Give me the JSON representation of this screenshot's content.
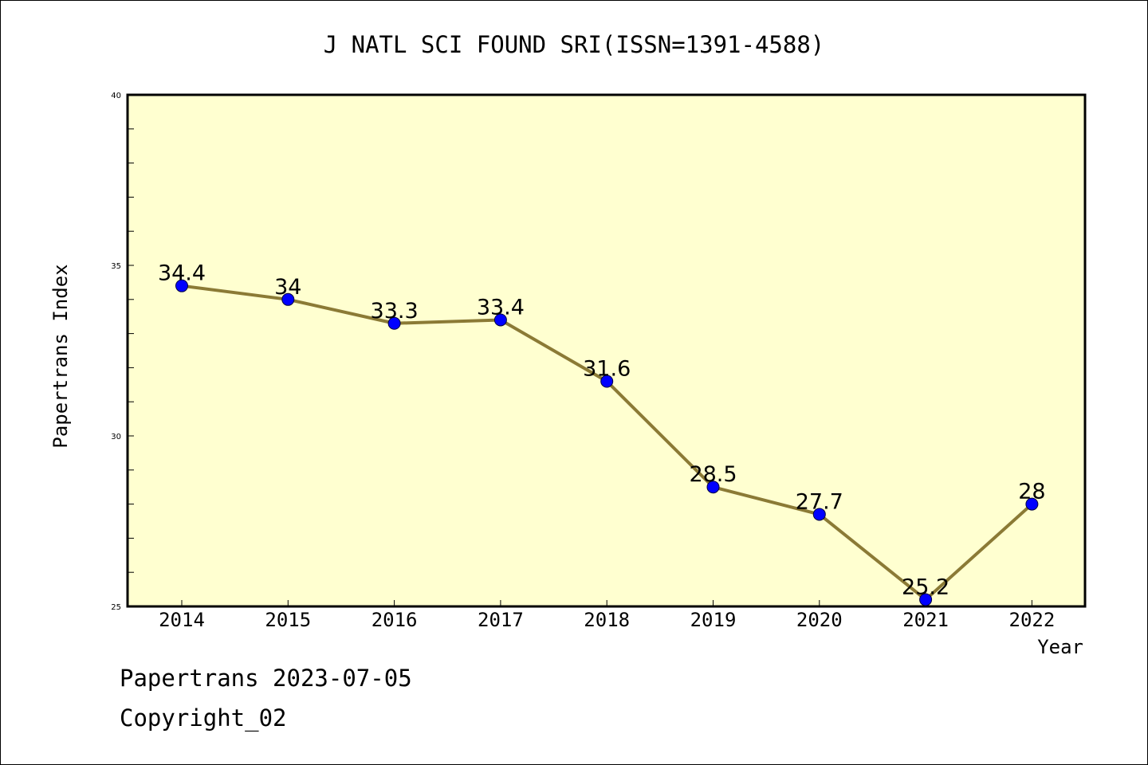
{
  "chart_data": {
    "type": "line",
    "title": "J NATL SCI FOUND SRI(ISSN=1391-4588)",
    "xlabel": "Year",
    "ylabel": "Papertrans Index",
    "categories": [
      "2014",
      "2015",
      "2016",
      "2017",
      "2018",
      "2019",
      "2020",
      "2021",
      "2022"
    ],
    "series": [
      {
        "values": [
          34.4,
          34,
          33.3,
          33.4,
          31.6,
          28.5,
          27.7,
          25.2,
          28
        ],
        "data_labels": [
          "34.4",
          "34",
          "33.3",
          "33.4",
          "31.6",
          "28.5",
          "27.7",
          "25.2",
          "28"
        ]
      }
    ],
    "ylim": [
      25,
      40
    ],
    "yticks": [
      25,
      30,
      35,
      40
    ],
    "grid": false,
    "legend": "none",
    "colors": {
      "plot_background": "#ffffd0",
      "line": "#8b7a35",
      "marker": "#0000ff"
    }
  },
  "footer": {
    "line1": "Papertrans 2023-07-05",
    "line2": "Copyright_02"
  }
}
